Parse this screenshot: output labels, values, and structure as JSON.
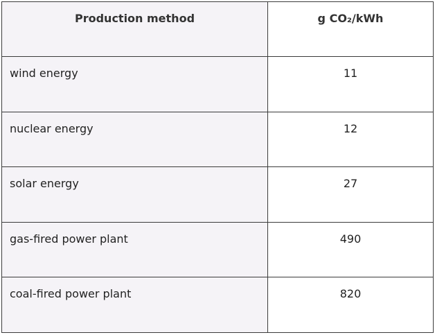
{
  "table": {
    "header": [
      "Production method",
      "g CO₂/kWh"
    ],
    "rows": [
      [
        "wind energy",
        11
      ],
      [
        "nuclear energy",
        12
      ],
      [
        "solar energy",
        27
      ],
      [
        "gas-fired power plant",
        490
      ],
      [
        "coal-fired power plant",
        820
      ]
    ]
  }
}
